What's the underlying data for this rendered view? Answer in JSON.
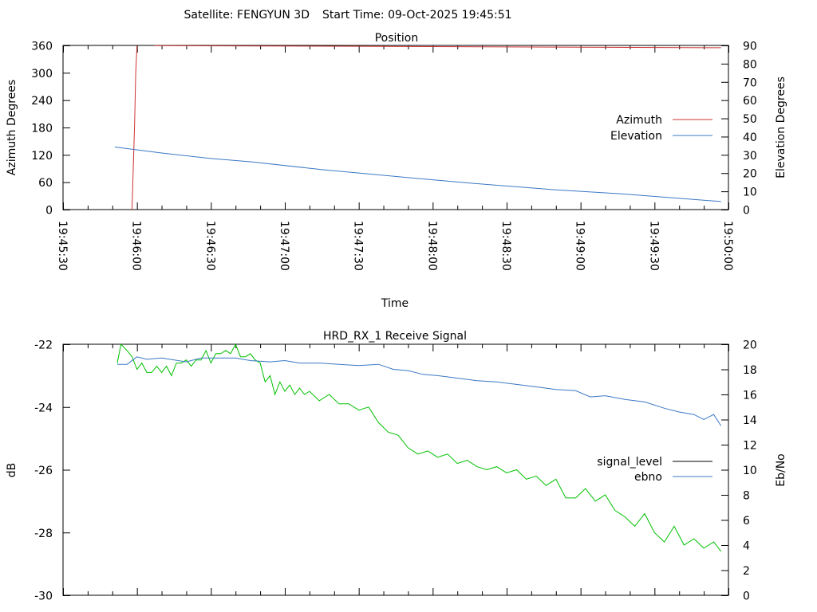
{
  "header": {
    "satellite": "Satellite: FENGYUN 3D",
    "start_time": "Start Time: 09-Oct-2025 19:45:51"
  },
  "chart_data": [
    {
      "type": "line",
      "title": "Position",
      "xlabel": "Time",
      "ylabel": "Azimuth Degrees",
      "y2label": "Elevation Degrees",
      "x_start": "19:45:30",
      "x_unit": "seconds after 19:45:30",
      "xlim": [
        0,
        270
      ],
      "ylim": [
        0,
        360
      ],
      "y2lim": [
        0,
        90
      ],
      "xticks": [
        "19:45:30",
        "19:46:00",
        "19:46:30",
        "19:47:00",
        "19:47:30",
        "19:48:00",
        "19:48:30",
        "19:49:00",
        "19:49:30",
        "19:50:00"
      ],
      "yticks": [
        "0",
        "60",
        "120",
        "180",
        "240",
        "300",
        "360"
      ],
      "y2ticks": [
        "0",
        "10",
        "20",
        "30",
        "40",
        "50",
        "60",
        "70",
        "80",
        "90"
      ],
      "legend_position": "right",
      "series": [
        {
          "name": "Azimuth",
          "axis": "y",
          "color": "#cc3333",
          "segments": [
            [
              [
                28,
                0
              ],
              [
                28.5,
                90
              ],
              [
                29,
                180
              ],
              [
                29.5,
                300
              ],
              [
                30,
                359
              ]
            ],
            [
              [
                37,
                359.5
              ],
              [
                120,
                358
              ],
              [
                190,
                356.5
              ],
              [
                267,
                355
              ]
            ]
          ]
        },
        {
          "name": "Elevation",
          "axis": "y2",
          "color": "#3a78c4",
          "segments": [
            [
              [
                21,
                34.3
              ],
              [
                40,
                31
              ],
              [
                60,
                28
              ],
              [
                76,
                26.2
              ],
              [
                106,
                21.8
              ],
              [
                140,
                17.5
              ],
              [
                166,
                14.4
              ],
              [
                200,
                10.8
              ],
              [
                226,
                8.7
              ],
              [
                267,
                4.4
              ]
            ]
          ]
        }
      ]
    },
    {
      "type": "line",
      "title": "HRD_RX_1 Receive Signal",
      "ylabel": "dB",
      "y2label": "Eb/No",
      "x_start": "19:45:30",
      "xlim": [
        0,
        270
      ],
      "ylim": [
        -30,
        -22
      ],
      "y2lim": [
        0,
        20
      ],
      "yticks": [
        "-30",
        "-28",
        "-26",
        "-24",
        "-22"
      ],
      "y2ticks": [
        "0",
        "2",
        "4",
        "6",
        "8",
        "10",
        "12",
        "14",
        "16",
        "18",
        "20"
      ],
      "legend_position": "right",
      "series": [
        {
          "name": "signal_level",
          "axis": "y",
          "color": "#00c000",
          "legend_color": "#000000",
          "segments": [
            [
              [
                22,
                -22.6
              ],
              [
                23.5,
                -22.0
              ],
              [
                26,
                -22.2
              ],
              [
                28,
                -22.4
              ],
              [
                30,
                -22.8
              ],
              [
                32,
                -22.6
              ],
              [
                34,
                -22.9
              ],
              [
                36,
                -22.9
              ],
              [
                38,
                -22.7
              ],
              [
                40,
                -22.9
              ],
              [
                42,
                -22.7
              ],
              [
                44,
                -23.0
              ],
              [
                46,
                -22.6
              ],
              [
                48,
                -22.6
              ],
              [
                50,
                -22.5
              ],
              [
                52,
                -22.7
              ],
              [
                54,
                -22.5
              ],
              [
                56,
                -22.5
              ],
              [
                58,
                -22.2
              ],
              [
                60,
                -22.6
              ],
              [
                62,
                -22.3
              ],
              [
                64,
                -22.3
              ],
              [
                66,
                -22.2
              ],
              [
                68,
                -22.3
              ],
              [
                70,
                -22.0
              ],
              [
                72,
                -22.4
              ],
              [
                74,
                -22.4
              ],
              [
                76,
                -22.3
              ],
              [
                78,
                -22.5
              ],
              [
                80,
                -22.6
              ],
              [
                82,
                -23.2
              ],
              [
                84,
                -23.0
              ],
              [
                86,
                -23.6
              ],
              [
                88,
                -23.2
              ],
              [
                90,
                -23.5
              ],
              [
                92,
                -23.3
              ],
              [
                94,
                -23.6
              ],
              [
                96,
                -23.4
              ],
              [
                98,
                -23.6
              ],
              [
                100,
                -23.5
              ],
              [
                104,
                -23.8
              ],
              [
                108,
                -23.6
              ],
              [
                112,
                -23.9
              ],
              [
                116,
                -23.9
              ],
              [
                120,
                -24.1
              ],
              [
                124,
                -24.0
              ],
              [
                128,
                -24.5
              ],
              [
                132,
                -24.8
              ],
              [
                136,
                -24.9
              ],
              [
                140,
                -25.3
              ],
              [
                144,
                -25.5
              ],
              [
                148,
                -25.4
              ],
              [
                152,
                -25.6
              ],
              [
                156,
                -25.5
              ],
              [
                160,
                -25.8
              ],
              [
                164,
                -25.7
              ],
              [
                168,
                -25.9
              ],
              [
                172,
                -26.0
              ],
              [
                176,
                -25.9
              ],
              [
                180,
                -26.1
              ],
              [
                184,
                -26.0
              ],
              [
                188,
                -26.3
              ],
              [
                192,
                -26.2
              ],
              [
                196,
                -26.5
              ],
              [
                200,
                -26.3
              ],
              [
                204,
                -26.9
              ],
              [
                208,
                -26.9
              ],
              [
                212,
                -26.6
              ],
              [
                216,
                -27.0
              ],
              [
                220,
                -26.8
              ],
              [
                224,
                -27.3
              ],
              [
                228,
                -27.5
              ],
              [
                232,
                -27.8
              ],
              [
                236,
                -27.4
              ],
              [
                240,
                -28.0
              ],
              [
                244,
                -28.3
              ],
              [
                248,
                -27.8
              ],
              [
                252,
                -28.4
              ],
              [
                256,
                -28.2
              ],
              [
                260,
                -28.5
              ],
              [
                264,
                -28.3
              ],
              [
                267,
                -28.6
              ]
            ]
          ]
        },
        {
          "name": "ebno",
          "axis": "y2",
          "color": "#3a78c4",
          "segments": [
            [
              [
                22,
                18.4
              ],
              [
                26,
                18.4
              ],
              [
                30,
                19.0
              ],
              [
                34,
                18.8
              ],
              [
                40,
                18.9
              ],
              [
                50,
                18.6
              ],
              [
                56,
                18.9
              ],
              [
                64,
                18.9
              ],
              [
                70,
                18.9
              ],
              [
                76,
                18.7
              ],
              [
                84,
                18.6
              ],
              [
                90,
                18.7
              ],
              [
                96,
                18.5
              ],
              [
                104,
                18.5
              ],
              [
                112,
                18.4
              ],
              [
                120,
                18.3
              ],
              [
                128,
                18.4
              ],
              [
                134,
                18.0
              ],
              [
                140,
                17.9
              ],
              [
                146,
                17.6
              ],
              [
                152,
                17.5
              ],
              [
                160,
                17.3
              ],
              [
                168,
                17.1
              ],
              [
                176,
                17.0
              ],
              [
                184,
                16.8
              ],
              [
                192,
                16.6
              ],
              [
                200,
                16.4
              ],
              [
                208,
                16.3
              ],
              [
                214,
                15.8
              ],
              [
                220,
                15.9
              ],
              [
                228,
                15.6
              ],
              [
                236,
                15.4
              ],
              [
                244,
                14.9
              ],
              [
                250,
                14.6
              ],
              [
                256,
                14.4
              ],
              [
                260,
                14.0
              ],
              [
                264,
                14.4
              ],
              [
                267,
                13.5
              ]
            ]
          ]
        }
      ]
    }
  ]
}
